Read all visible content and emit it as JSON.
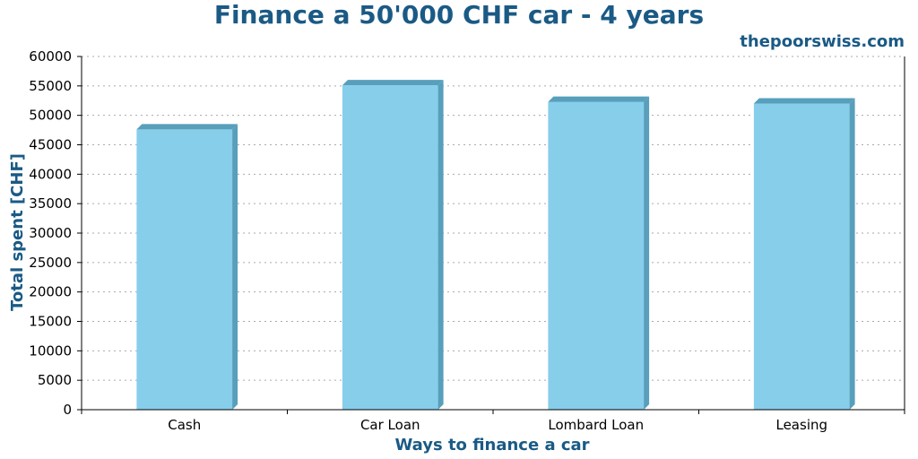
{
  "header": {
    "title": "Finance a 50'000 CHF car - 4 years",
    "brand": "thepoorswiss.com"
  },
  "chart_data": {
    "type": "bar",
    "title": "Finance a 50'000 CHF car - 4 years",
    "xlabel": "Ways to finance a car",
    "ylabel": "Total spent [CHF]",
    "categories": [
      "Cash",
      "Car Loan",
      "Lombard Loan",
      "Leasing"
    ],
    "values": [
      47600,
      55100,
      52300,
      52000
    ],
    "ylim": [
      0,
      60000
    ],
    "yticks": [
      "0",
      "5000",
      "10000",
      "15000",
      "20000",
      "25000",
      "30000",
      "35000",
      "40000",
      "45000",
      "50000",
      "55000",
      "60000"
    ],
    "grid": true,
    "colors": {
      "bar_face": "#87ceeb",
      "bar_side": "#579fbb",
      "text_accent": "#1a5a85"
    }
  }
}
